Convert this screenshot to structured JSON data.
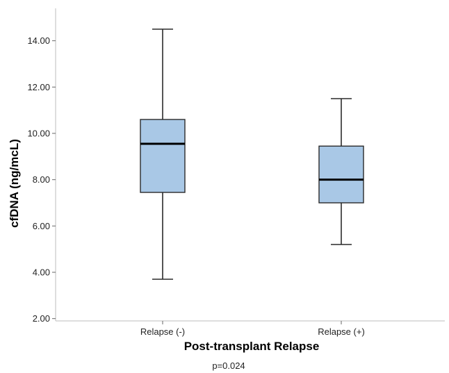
{
  "chart_data": {
    "type": "box",
    "xlabel": "Post-transplant Relapse",
    "ylabel": "cfDNA (ng/mcL)",
    "note": "p=0.024",
    "ylim": [
      1.9,
      15.4
    ],
    "yticks": [
      2,
      4,
      6,
      8,
      10,
      12,
      14
    ],
    "ytick_labels": [
      "2.00",
      "4.00",
      "6.00",
      "8.00",
      "10.00",
      "12.00",
      "14.00"
    ],
    "categories": [
      "Relapse (-)",
      "Relapse (+)"
    ],
    "boxes": [
      {
        "category": "Relapse (-)",
        "min": 3.7,
        "q1": 7.45,
        "median": 9.55,
        "q3": 10.6,
        "max": 14.5
      },
      {
        "category": "Relapse (+)",
        "min": 5.2,
        "q1": 7.0,
        "median": 8.0,
        "q3": 9.45,
        "max": 11.5
      }
    ],
    "box_fill": "#a9c8e6",
    "box_stroke": "#2a2a2a",
    "grid": false,
    "legend": "none"
  }
}
